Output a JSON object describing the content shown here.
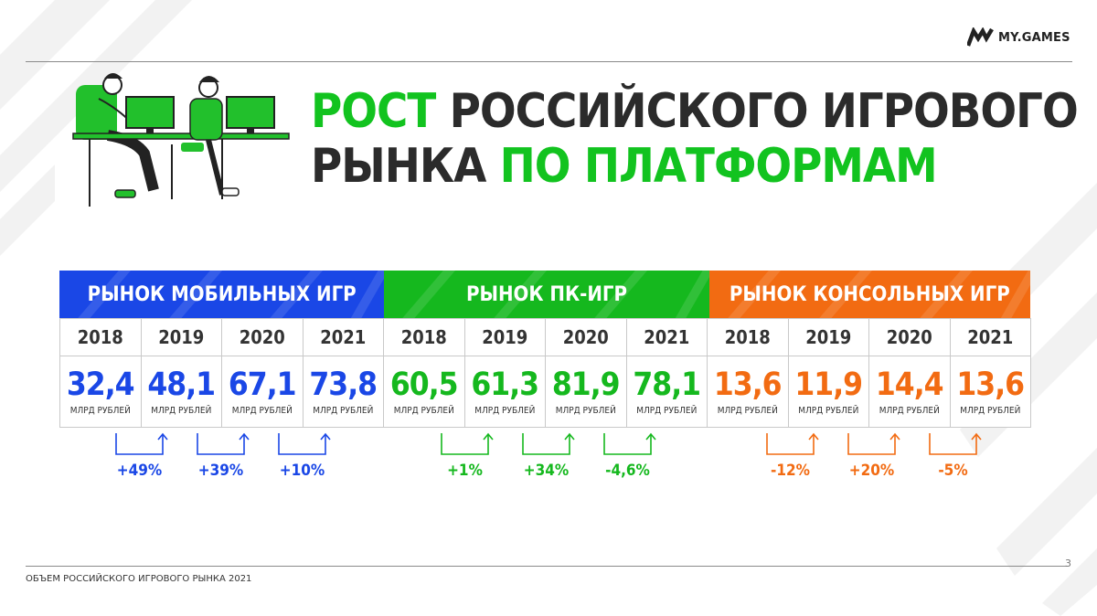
{
  "brand": {
    "logo_text": "MY.GAMES"
  },
  "title": {
    "line1_green": "РОСТ",
    "line1_dark": " РОССИЙСКОГО ИГРОВОГО",
    "line2_dark": "РЫНКА ",
    "line2_green": "ПО ПЛАТФОРМАМ"
  },
  "colors": {
    "mobile": "#1a47e6",
    "pc": "#15b81e",
    "console": "#f26b12",
    "accent_green": "#12c31f"
  },
  "unit_label": "МЛРД РУБЛЕЙ",
  "chart_data": {
    "type": "table",
    "title": "РОСТ РОССИЙСКОГО ИГРОВОГО РЫНКА ПО ПЛАТФОРМАМ",
    "unit": "МЛРД РУБЛЕЙ",
    "groups": [
      {
        "name": "РЫНОК МОБИЛЬНЫХ ИГР",
        "color": "#1a47e6",
        "years": [
          "2018",
          "2019",
          "2020",
          "2021"
        ],
        "values": [
          "32,4",
          "48,1",
          "67,1",
          "73,8"
        ],
        "growth": [
          "+49%",
          "+39%",
          "+10%"
        ]
      },
      {
        "name": "РЫНОК ПК-ИГР",
        "color": "#15b81e",
        "years": [
          "2018",
          "2019",
          "2020",
          "2021"
        ],
        "values": [
          "60,5",
          "61,3",
          "81,9",
          "78,1"
        ],
        "growth": [
          "+1%",
          "+34%",
          "-4,6%"
        ]
      },
      {
        "name": "РЫНОК КОНСОЛЬНЫХ ИГР",
        "color": "#f26b12",
        "years": [
          "2018",
          "2019",
          "2020",
          "2021"
        ],
        "values": [
          "13,6",
          "11,9",
          "14,4",
          "13,6"
        ],
        "growth": [
          "-12%",
          "+20%",
          "-5%"
        ]
      }
    ]
  },
  "footer": {
    "text": "ОБЪЕМ РОССИЙСКОГО ИГРОВОГО РЫНКА 2021",
    "page_number": "3"
  }
}
